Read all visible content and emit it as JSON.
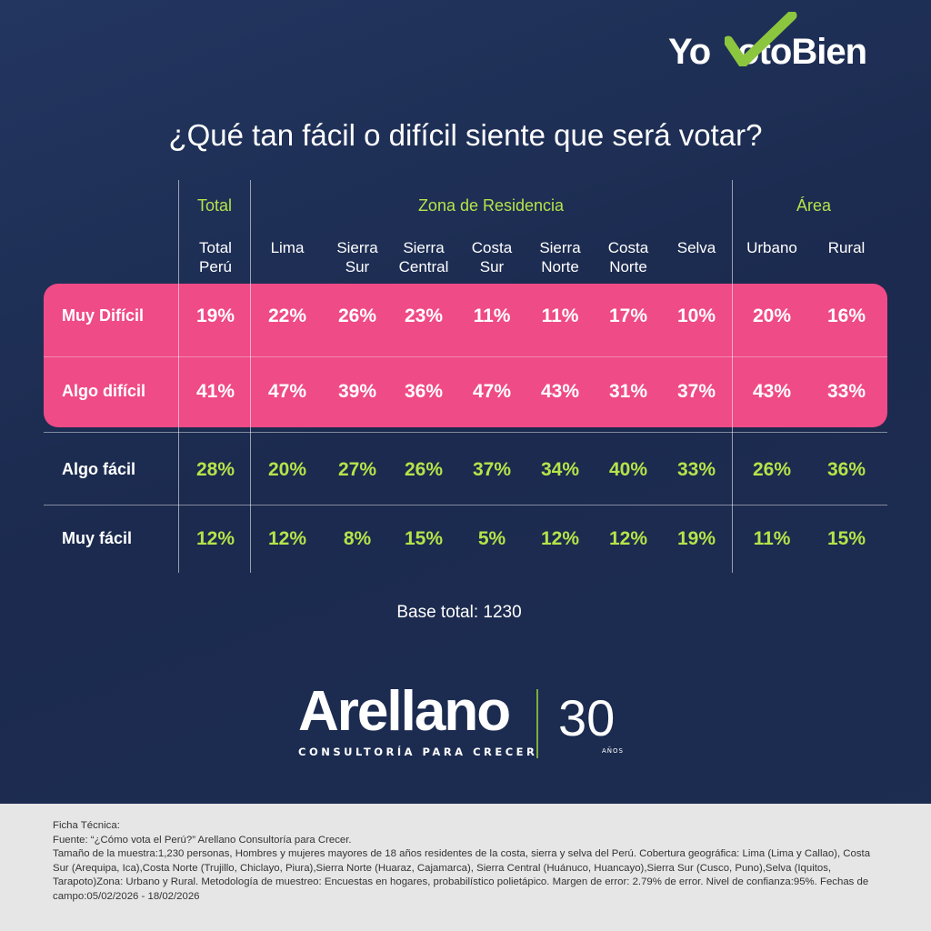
{
  "brand": {
    "logo_top": "YoVotoBien",
    "logo_bottom": "Arellano",
    "logo_bottom_tagline": "CONSULTORÍA PARA CRECER",
    "anniversary_number": "30",
    "anniversary_label": "AÑOS"
  },
  "colors": {
    "pink": "#ef4b86",
    "green": "#b5e34a",
    "navy": "#1c2b4f"
  },
  "title": "¿Qué tan fácil o difícil siente que será votar?",
  "chart_data": {
    "type": "table",
    "title": "¿Qué tan fácil o difícil siente que será votar?",
    "groups": [
      {
        "label": "Total",
        "span": 1
      },
      {
        "label": "Zona de Residencia",
        "span": 7
      },
      {
        "label": "Área",
        "span": 2
      }
    ],
    "columns": [
      "Total Perú",
      "Lima",
      "Sierra Sur",
      "Sierra Central",
      "Costa Sur",
      "Sierra Norte",
      "Costa Norte",
      "Selva",
      "Urbano",
      "Rural"
    ],
    "rows": [
      {
        "label": "Muy Difícil",
        "values": [
          "19%",
          "22%",
          "26%",
          "23%",
          "11%",
          "11%",
          "17%",
          "10%",
          "20%",
          "16%"
        ]
      },
      {
        "label": "Algo difícil",
        "values": [
          "41%",
          "47%",
          "39%",
          "36%",
          "47%",
          "43%",
          "31%",
          "37%",
          "43%",
          "33%"
        ]
      },
      {
        "label": "Algo fácil",
        "values": [
          "28%",
          "20%",
          "27%",
          "26%",
          "37%",
          "34%",
          "40%",
          "33%",
          "26%",
          "36%"
        ]
      },
      {
        "label": "Muy fácil",
        "values": [
          "12%",
          "12%",
          "8%",
          "15%",
          "5%",
          "12%",
          "12%",
          "19%",
          "11%",
          "15%"
        ]
      }
    ],
    "base": "Base total: 1230"
  },
  "footer": {
    "lines": [
      "Ficha Técnica:",
      "Fuente: “¿Cómo vota el Perú?” Arellano Consultoría para Crecer.",
      "Tamaño de la muestra:1,230 personas, Hombres y mujeres mayores de 18 años residentes de la costa, sierra y selva del Perú. Cobertura geográfica: Lima (Lima y Callao), Costa Sur (Arequipa, Ica),Costa Norte (Trujillo, Chiclayo, Piura),Sierra Norte (Huaraz, Cajamarca), Sierra Central (Huánuco, Huancayo),Sierra Sur (Cusco, Puno),Selva (Iquitos, Tarapoto)Zona: Urbano y Rural. Metodología de muestreo: Encuestas en hogares, probabilístico polietápico. Margen de error: 2.79% de error. Nivel de confianza:95%. Fechas de campo:05/02/2026 - 18/02/2026"
    ]
  }
}
